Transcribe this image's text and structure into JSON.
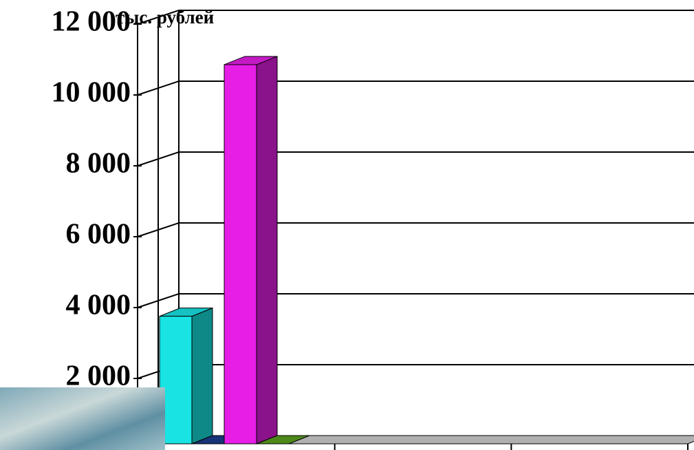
{
  "chart_data": {
    "type": "bar3d",
    "y_label": "тыс. рублей",
    "categories": [
      null,
      null,
      null
    ],
    "series": [
      {
        "color": "#19e3e3",
        "values": [
          3600,
          null,
          null
        ]
      },
      {
        "color": "#1b3c8c",
        "values": [
          0,
          null,
          null
        ]
      },
      {
        "color": "#e61ee6",
        "values": [
          10700,
          null,
          null
        ]
      },
      {
        "color": "#5aa01e",
        "values": [
          0,
          null,
          null
        ]
      }
    ],
    "ylim": [
      0,
      12000
    ],
    "yticks": [
      {
        "value": 2000,
        "label": "2 000"
      },
      {
        "value": 4000,
        "label": "4 000"
      },
      {
        "value": 6000,
        "label": "6 000"
      },
      {
        "value": 8000,
        "label": "8 000"
      },
      {
        "value": 10000,
        "label": "10 000"
      },
      {
        "value": 12000,
        "label": "12 000"
      }
    ],
    "grid": true
  }
}
